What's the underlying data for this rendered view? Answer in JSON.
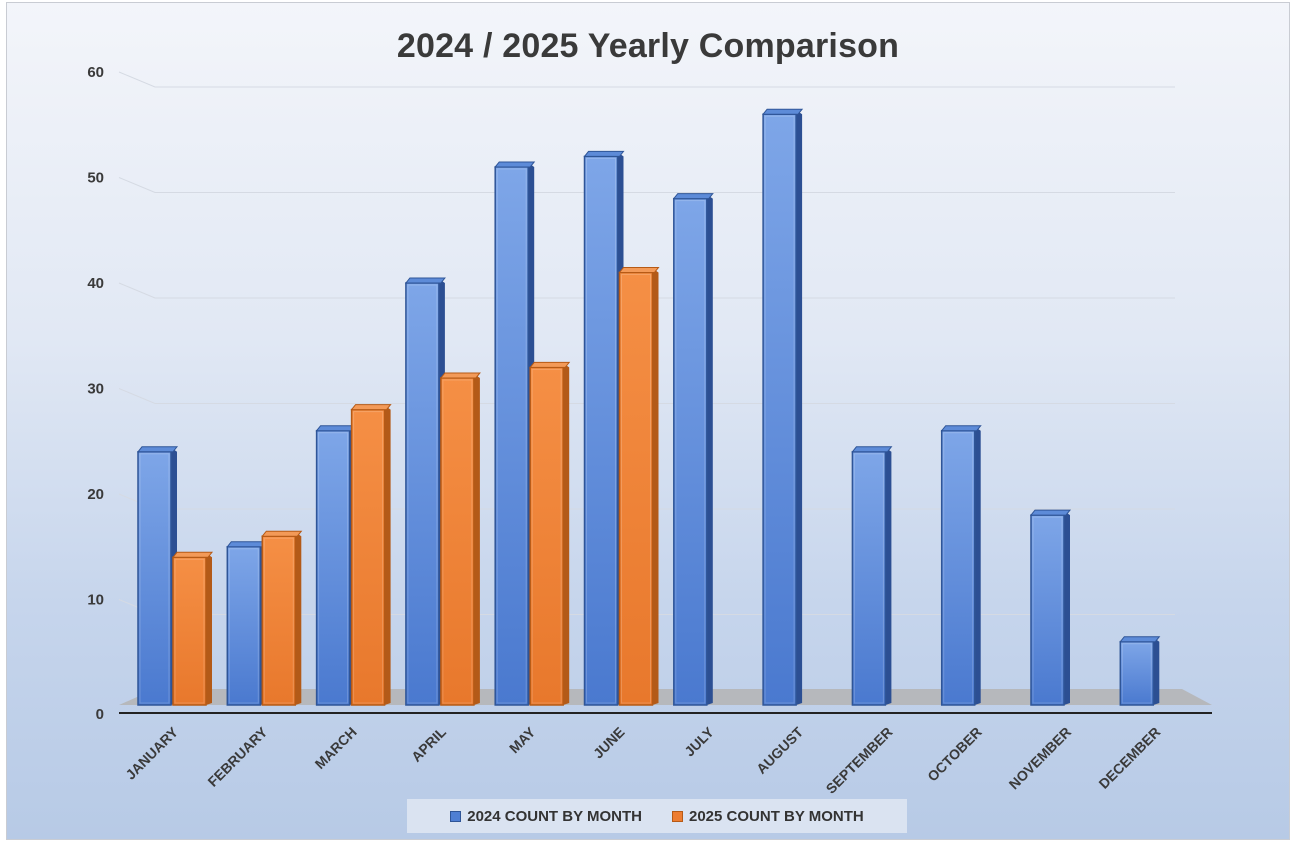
{
  "chart_data": {
    "type": "bar",
    "title": "2024 / 2025 Yearly Comparison",
    "xlabel": "",
    "ylabel": "",
    "ylim": [
      0,
      60
    ],
    "yticks": [
      0,
      10,
      20,
      30,
      40,
      50,
      60
    ],
    "grid": true,
    "legend_position": "bottom",
    "categories": [
      "JANUARY",
      "FEBRUARY",
      "MARCH",
      "APRIL",
      "MAY",
      "JUNE",
      "JULY",
      "AUGUST",
      "SEPTEMBER",
      "OCTOBER",
      "NOVEMBER",
      "DECEMBER"
    ],
    "series": [
      {
        "name": "2024 COUNT BY MONTH",
        "color": "#4472c4",
        "values": [
          24,
          15,
          26,
          40,
          51,
          52,
          48,
          56,
          24,
          26,
          18,
          6
        ]
      },
      {
        "name": "2025 COUNT BY MONTH",
        "color": "#ed7d31",
        "values": [
          14,
          16,
          28,
          31,
          32,
          41,
          null,
          null,
          null,
          null,
          null,
          null
        ]
      }
    ]
  }
}
